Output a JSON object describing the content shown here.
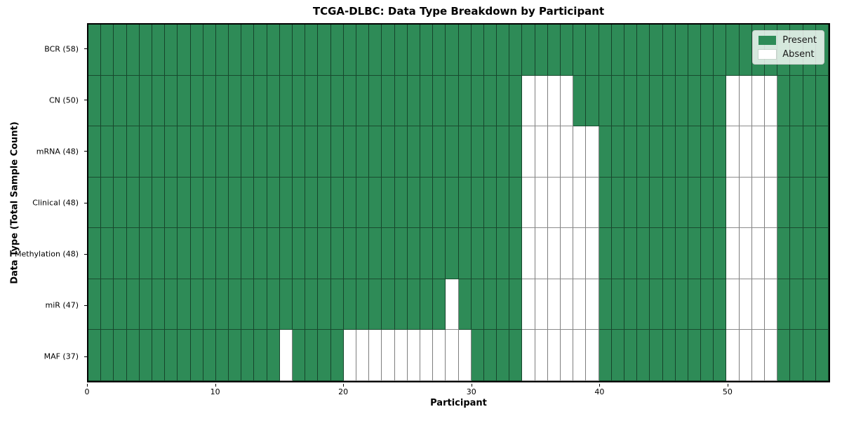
{
  "chart_data": {
    "type": "heatmap",
    "title": "TCGA-DLBC: Data Type Breakdown by Participant",
    "xlabel": "Participant",
    "ylabel": "Data Type (Total Sample Count)",
    "n_participants": 58,
    "x_ticks": [
      0,
      10,
      20,
      30,
      40,
      50
    ],
    "xlim": [
      0,
      58
    ],
    "grid": true,
    "colors": {
      "present": "#2e8b57",
      "absent": "#ffffff"
    },
    "legend": {
      "position": "upper right",
      "items": [
        {
          "label": "Present",
          "color": "#2e8b57"
        },
        {
          "label": "Absent",
          "color": "#ffffff"
        }
      ]
    },
    "rows": [
      {
        "label": "BCR (58)",
        "data_type": "BCR",
        "total_samples": 58,
        "absent_participants": []
      },
      {
        "label": "CN (50)",
        "data_type": "CN",
        "total_samples": 50,
        "absent_participants": [
          34,
          35,
          36,
          37,
          50,
          51,
          52,
          53
        ]
      },
      {
        "label": "mRNA (48)",
        "data_type": "mRNA",
        "total_samples": 48,
        "absent_participants": [
          34,
          35,
          36,
          37,
          38,
          39,
          50,
          51,
          52,
          53
        ]
      },
      {
        "label": "Clinical (48)",
        "data_type": "Clinical",
        "total_samples": 48,
        "absent_participants": [
          34,
          35,
          36,
          37,
          38,
          39,
          50,
          51,
          52,
          53
        ]
      },
      {
        "label": "Methylation (48)",
        "data_type": "Methylation",
        "total_samples": 48,
        "absent_participants": [
          34,
          35,
          36,
          37,
          38,
          39,
          50,
          51,
          52,
          53
        ]
      },
      {
        "label": "miR (47)",
        "data_type": "miR",
        "total_samples": 47,
        "absent_participants": [
          28,
          34,
          35,
          36,
          37,
          38,
          39,
          50,
          51,
          52,
          53
        ]
      },
      {
        "label": "MAF (37)",
        "data_type": "MAF",
        "total_samples": 37,
        "absent_participants": [
          15,
          20,
          21,
          22,
          23,
          24,
          25,
          26,
          27,
          28,
          29,
          34,
          35,
          36,
          37,
          38,
          39,
          50,
          51,
          52,
          53
        ]
      }
    ]
  }
}
